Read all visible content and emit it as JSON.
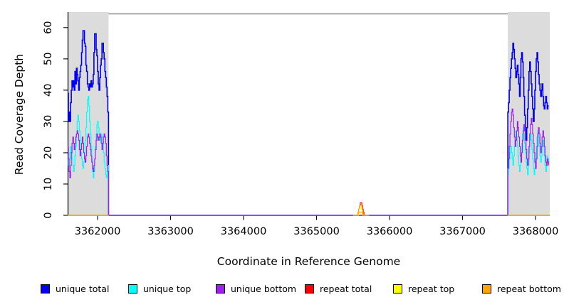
{
  "axes": {
    "x_title": "Coordinate in Reference Genome",
    "y_title": "Read Coverage Depth"
  },
  "chart_data": {
    "type": "line",
    "title": "",
    "xlabel": "Coordinate in Reference Genome",
    "ylabel": "Read Coverage Depth",
    "xlim": [
      3361590,
      3368195
    ],
    "ylim": [
      0,
      64.5
    ],
    "xticks": [
      3362000,
      3363000,
      3364000,
      3365000,
      3366000,
      3367000,
      3368000
    ],
    "yticks": [
      0,
      10,
      20,
      30,
      40,
      50,
      60
    ],
    "grid": false,
    "legend_position": "bottom",
    "plot_border_color": "#8c8c8c",
    "shaded_regions": [
      {
        "x0": 3361590,
        "x1": 3362150,
        "color": "#dcdcdc"
      },
      {
        "x0": 3367620,
        "x1": 3368195,
        "color": "#dcdcdc"
      }
    ],
    "series": [
      {
        "name": "unique total",
        "color": "#0000EE",
        "width": 1.6,
        "connected": true,
        "segments": [
          {
            "x0": 3361590,
            "dx": 10,
            "v": [
              39,
              30,
              33,
              30,
              36,
              40,
              43,
              41,
              43,
              40,
              46,
              42,
              47,
              45,
              43,
              40,
              44,
              46,
              48,
              52,
              56,
              59,
              59,
              55,
              54,
              48,
              46,
              42,
              41,
              40,
              42,
              41,
              43,
              41,
              42,
              45,
              52,
              58,
              58,
              53,
              51,
              46,
              42,
              40,
              44,
              48,
              50,
              55,
              55,
              52,
              50,
              46,
              44,
              41,
              38,
              33,
              28
            ]
          },
          {
            "pts": [
              [
                3362150,
                0
              ],
              [
                3367620,
                0
              ]
            ]
          },
          {
            "x0": 3367620,
            "dx": 10,
            "v": [
              33,
              36,
              40,
              44,
              47,
              50,
              52,
              55,
              53,
              50,
              47,
              44,
              46,
              48,
              45,
              42,
              38,
              44,
              50,
              52,
              49,
              44,
              38,
              32,
              27,
              24,
              28,
              34,
              40,
              46,
              49,
              46,
              42,
              38,
              34,
              30,
              34,
              40,
              46,
              50,
              52,
              49,
              45,
              42,
              40,
              38,
              40,
              42,
              38,
              35,
              34,
              36,
              38,
              36,
              34,
              35,
              35
            ]
          }
        ]
      },
      {
        "name": "unique top",
        "color": "#00FFFF",
        "width": 1.2,
        "connected": true,
        "segments": [
          {
            "x0": 3361590,
            "dx": 10,
            "v": [
              19,
              16,
              18,
              20,
              22,
              20,
              18,
              16,
              14,
              16,
              19,
              22,
              26,
              30,
              32,
              30,
              27,
              24,
              20,
              18,
              16,
              15,
              17,
              20,
              24,
              28,
              33,
              37,
              38,
              35,
              30,
              26,
              22,
              18,
              14,
              12,
              14,
              18,
              22,
              26,
              29,
              30,
              28,
              26,
              24,
              25,
              26,
              25,
              23,
              20,
              17,
              15,
              13,
              12,
              14,
              16,
              15
            ]
          },
          {
            "pts": [
              [
                3362150,
                0
              ],
              [
                3367620,
                0
              ]
            ]
          },
          {
            "x0": 3367620,
            "dx": 10,
            "v": [
              13,
              15,
              18,
              20,
              22,
              20,
              18,
              16,
              19,
              22,
              25,
              27,
              25,
              22,
              19,
              16,
              14,
              16,
              19,
              23,
              26,
              28,
              26,
              23,
              20,
              17,
              15,
              13,
              16,
              20,
              24,
              26,
              24,
              21,
              18,
              15,
              13,
              15,
              18,
              22,
              25,
              27,
              25,
              22,
              19,
              17,
              19,
              22,
              24,
              22,
              19,
              16,
              14,
              16,
              19,
              18,
              17
            ]
          }
        ]
      },
      {
        "name": "unique bottom",
        "color": "#A020F0",
        "width": 1.2,
        "connected": true,
        "segments": [
          {
            "x0": 3361590,
            "dx": 10,
            "v": [
              22,
              18,
              14,
              12,
              16,
              20,
              23,
              25,
              23,
              21,
              23,
              25,
              26,
              27,
              26,
              24,
              21,
              19,
              21,
              23,
              25,
              23,
              20,
              18,
              17,
              19,
              22,
              25,
              26,
              25,
              23,
              21,
              19,
              17,
              15,
              14,
              16,
              18,
              21,
              24,
              26,
              25,
              24,
              25,
              26,
              25,
              23,
              21,
              23,
              25,
              26,
              25,
              23,
              19,
              16,
              14,
              13
            ]
          },
          {
            "pts": [
              [
                3362150,
                0
              ],
              [
                3367620,
                0
              ]
            ]
          },
          {
            "x0": 3367620,
            "dx": 10,
            "v": [
              15,
              18,
              22,
              26,
              30,
              33,
              34,
              32,
              28,
              25,
              22,
              24,
              27,
              30,
              28,
              25,
              22,
              19,
              17,
              20,
              24,
              27,
              29,
              27,
              24,
              21,
              18,
              16,
              18,
              22,
              26,
              29,
              31,
              29,
              26,
              23,
              20,
              17,
              15,
              18,
              22,
              26,
              28,
              26,
              23,
              20,
              22,
              25,
              27,
              25,
              22,
              19,
              17,
              16,
              18,
              17,
              16
            ]
          }
        ]
      },
      {
        "name": "repeat total",
        "color": "#FF0000",
        "width": 1.2,
        "connected": false,
        "segments": [
          {
            "pts": [
              [
                3361590,
                0
              ],
              [
                3362150,
                0
              ]
            ]
          },
          {
            "x0": 3365560,
            "dx": 10,
            "v": [
              0,
              1,
              2,
              3,
              4,
              4,
              3,
              2,
              1,
              0
            ]
          },
          {
            "pts": [
              [
                3367620,
                0
              ],
              [
                3368195,
                0
              ]
            ]
          }
        ]
      },
      {
        "name": "repeat top",
        "color": "#FFFF00",
        "width": 1.2,
        "connected": false,
        "segments": [
          {
            "pts": [
              [
                3361590,
                0
              ],
              [
                3362150,
                0
              ]
            ]
          },
          {
            "x0": 3365565,
            "dx": 10,
            "v": [
              0,
              1,
              2,
              3,
              3,
              2,
              1,
              0
            ]
          },
          {
            "pts": [
              [
                3367620,
                0
              ],
              [
                3368195,
                0
              ]
            ]
          }
        ]
      },
      {
        "name": "repeat bottom",
        "color": "#FFA500",
        "width": 1.4,
        "connected": false,
        "segments": [
          {
            "pts": [
              [
                3361590,
                0
              ],
              [
                3362155,
                0
              ]
            ]
          },
          {
            "pts": [
              [
                3365500,
                0
              ],
              [
                3365550,
                0
              ],
              [
                3365570,
                1
              ],
              [
                3365610,
                1
              ],
              [
                3365630,
                0
              ],
              [
                3365720,
                0
              ]
            ]
          },
          {
            "pts": [
              [
                3367615,
                0
              ],
              [
                3368195,
                0
              ]
            ]
          }
        ]
      }
    ]
  }
}
